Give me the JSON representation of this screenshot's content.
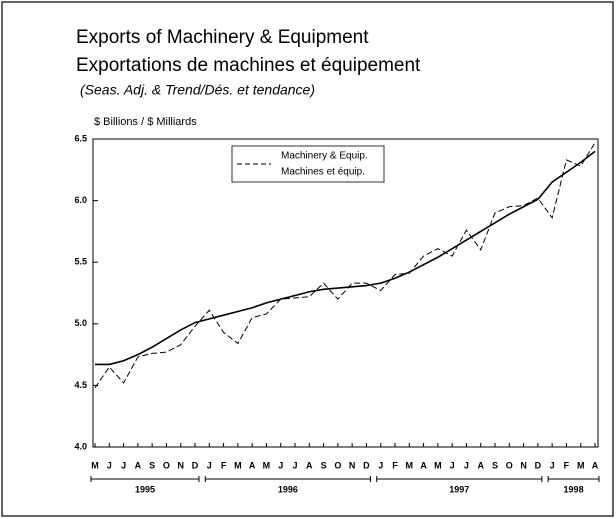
{
  "chart_data": {
    "type": "line",
    "title": "Exports of Machinery & Equipment",
    "title_fr": "Exportations de machines et équipement",
    "subtitle": "(Seas. Adj. & Trend/Dés. et tendance)",
    "y_label": "$ Billions / $ Milliards",
    "categories": [
      "M",
      "J",
      "J",
      "A",
      "S",
      "O",
      "N",
      "D",
      "J",
      "F",
      "M",
      "A",
      "M",
      "J",
      "J",
      "A",
      "S",
      "O",
      "N",
      "D",
      "J",
      "F",
      "M",
      "A",
      "M",
      "J",
      "J",
      "A",
      "S",
      "O",
      "N",
      "D",
      "J",
      "F",
      "M",
      "A"
    ],
    "years": [
      "1995",
      "1996",
      "1997",
      "1998"
    ],
    "series": [
      {
        "name": "Machinery & Equip.",
        "name_fr": "Machines et équip.",
        "color": "#000000",
        "dashed": true,
        "values": [
          4.48,
          4.65,
          4.52,
          4.73,
          4.76,
          4.77,
          4.83,
          4.98,
          5.11,
          4.93,
          4.84,
          5.05,
          5.08,
          5.2,
          5.21,
          5.22,
          5.33,
          5.2,
          5.33,
          5.33,
          5.27,
          5.4,
          5.41,
          5.55,
          5.61,
          5.55,
          5.76,
          5.6,
          5.9,
          5.95,
          5.96,
          6.02,
          5.86,
          6.33,
          6.28,
          6.47
        ]
      },
      {
        "color": "#000000",
        "dashed": false,
        "values": [
          4.67,
          4.67,
          4.7,
          4.75,
          4.81,
          4.88,
          4.95,
          5.01,
          5.04,
          5.07,
          5.1,
          5.13,
          5.17,
          5.2,
          5.23,
          5.26,
          5.28,
          5.29,
          5.3,
          5.31,
          5.33,
          5.37,
          5.42,
          5.48,
          5.54,
          5.61,
          5.68,
          5.75,
          5.82,
          5.89,
          5.95,
          6.01,
          6.15,
          6.23,
          6.31,
          6.4
        ]
      }
    ],
    "ylim": [
      4.0,
      6.5
    ],
    "yticks": [
      {
        "value": 4,
        "label": "4.0"
      },
      4.5,
      {
        "value": 5,
        "label": "5.0"
      },
      5.5,
      {
        "value": 6,
        "label": "6.0"
      },
      6.5
    ]
  }
}
